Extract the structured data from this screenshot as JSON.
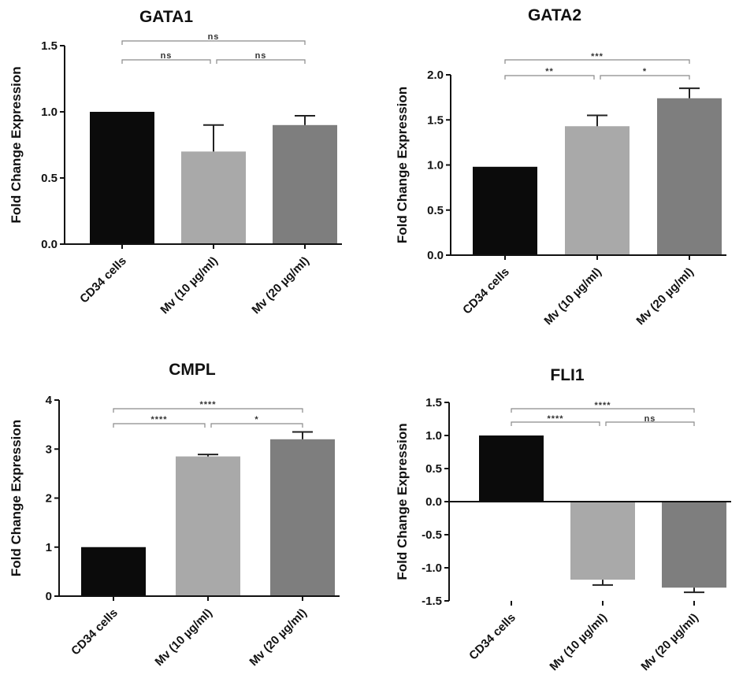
{
  "colors": {
    "CD34 cells": "#0b0b0b",
    "Mv (10 µg/ml)": "#a9a9a9",
    "Mv (20 µg/ml)": "#7e7e7e",
    "axis": "#111111",
    "bracket": "#8a8a8a"
  },
  "chart_data": [
    {
      "type": "bar",
      "title": "GATA1",
      "xlabel": "",
      "ylabel": "Fold Change Expression",
      "categories": [
        "CD34 cells",
        "Mv (10 µg/ml)",
        "Mv (20 µg/ml)"
      ],
      "values": [
        1.0,
        0.7,
        0.9
      ],
      "errors": [
        0,
        0.2,
        0.07
      ],
      "ylim": [
        0,
        1.5
      ],
      "yticks": [
        "0.0",
        "0.5",
        "1.0",
        "1.5"
      ],
      "significance": [
        {
          "from": 0,
          "to": 2,
          "label": "ns"
        },
        {
          "from": 0,
          "to": 1,
          "label": "ns"
        },
        {
          "from": 1,
          "to": 2,
          "label": "ns"
        }
      ]
    },
    {
      "type": "bar",
      "title": "GATA2",
      "xlabel": "",
      "ylabel": "Fold Change Expression",
      "categories": [
        "CD34 cells",
        "Mv (10 µg/ml)",
        "Mv (20 µg/ml)"
      ],
      "values": [
        0.98,
        1.43,
        1.74
      ],
      "errors": [
        0,
        0.12,
        0.11
      ],
      "ylim": [
        0,
        2.0
      ],
      "yticks": [
        "0.0",
        "0.5",
        "1.0",
        "1.5",
        "2.0"
      ],
      "significance": [
        {
          "from": 0,
          "to": 2,
          "label": "***"
        },
        {
          "from": 0,
          "to": 1,
          "label": "**"
        },
        {
          "from": 1,
          "to": 2,
          "label": "*"
        }
      ]
    },
    {
      "type": "bar",
      "title": "CMPL",
      "xlabel": "",
      "ylabel": "Fold Change Expression",
      "categories": [
        "CD34 cells",
        "Mv (10 µg/ml)",
        "Mv (20 µg/ml)"
      ],
      "values": [
        1.0,
        2.85,
        3.2
      ],
      "errors": [
        0,
        0.04,
        0.15
      ],
      "ylim": [
        0,
        4
      ],
      "yticks": [
        "0",
        "1",
        "2",
        "3",
        "4"
      ],
      "significance": [
        {
          "from": 0,
          "to": 2,
          "label": "****"
        },
        {
          "from": 0,
          "to": 1,
          "label": "****"
        },
        {
          "from": 1,
          "to": 2,
          "label": "*"
        }
      ]
    },
    {
      "type": "bar",
      "title": "FLI1",
      "xlabel": "",
      "ylabel": "Fold Change Expression",
      "categories": [
        "CD34 cells",
        "Mv (10 µg/ml)",
        "Mv (20 µg/ml)"
      ],
      "values": [
        1.0,
        -1.18,
        -1.3
      ],
      "errors": [
        0,
        0.08,
        0.07
      ],
      "ylim": [
        -1.5,
        1.5
      ],
      "yticks": [
        "-1.5",
        "-1.0",
        "-0.5",
        "0.0",
        "0.5",
        "1.0",
        "1.5"
      ],
      "significance": [
        {
          "from": 0,
          "to": 2,
          "label": "****"
        },
        {
          "from": 0,
          "to": 1,
          "label": "****"
        },
        {
          "from": 1,
          "to": 2,
          "label": "ns"
        }
      ]
    }
  ]
}
